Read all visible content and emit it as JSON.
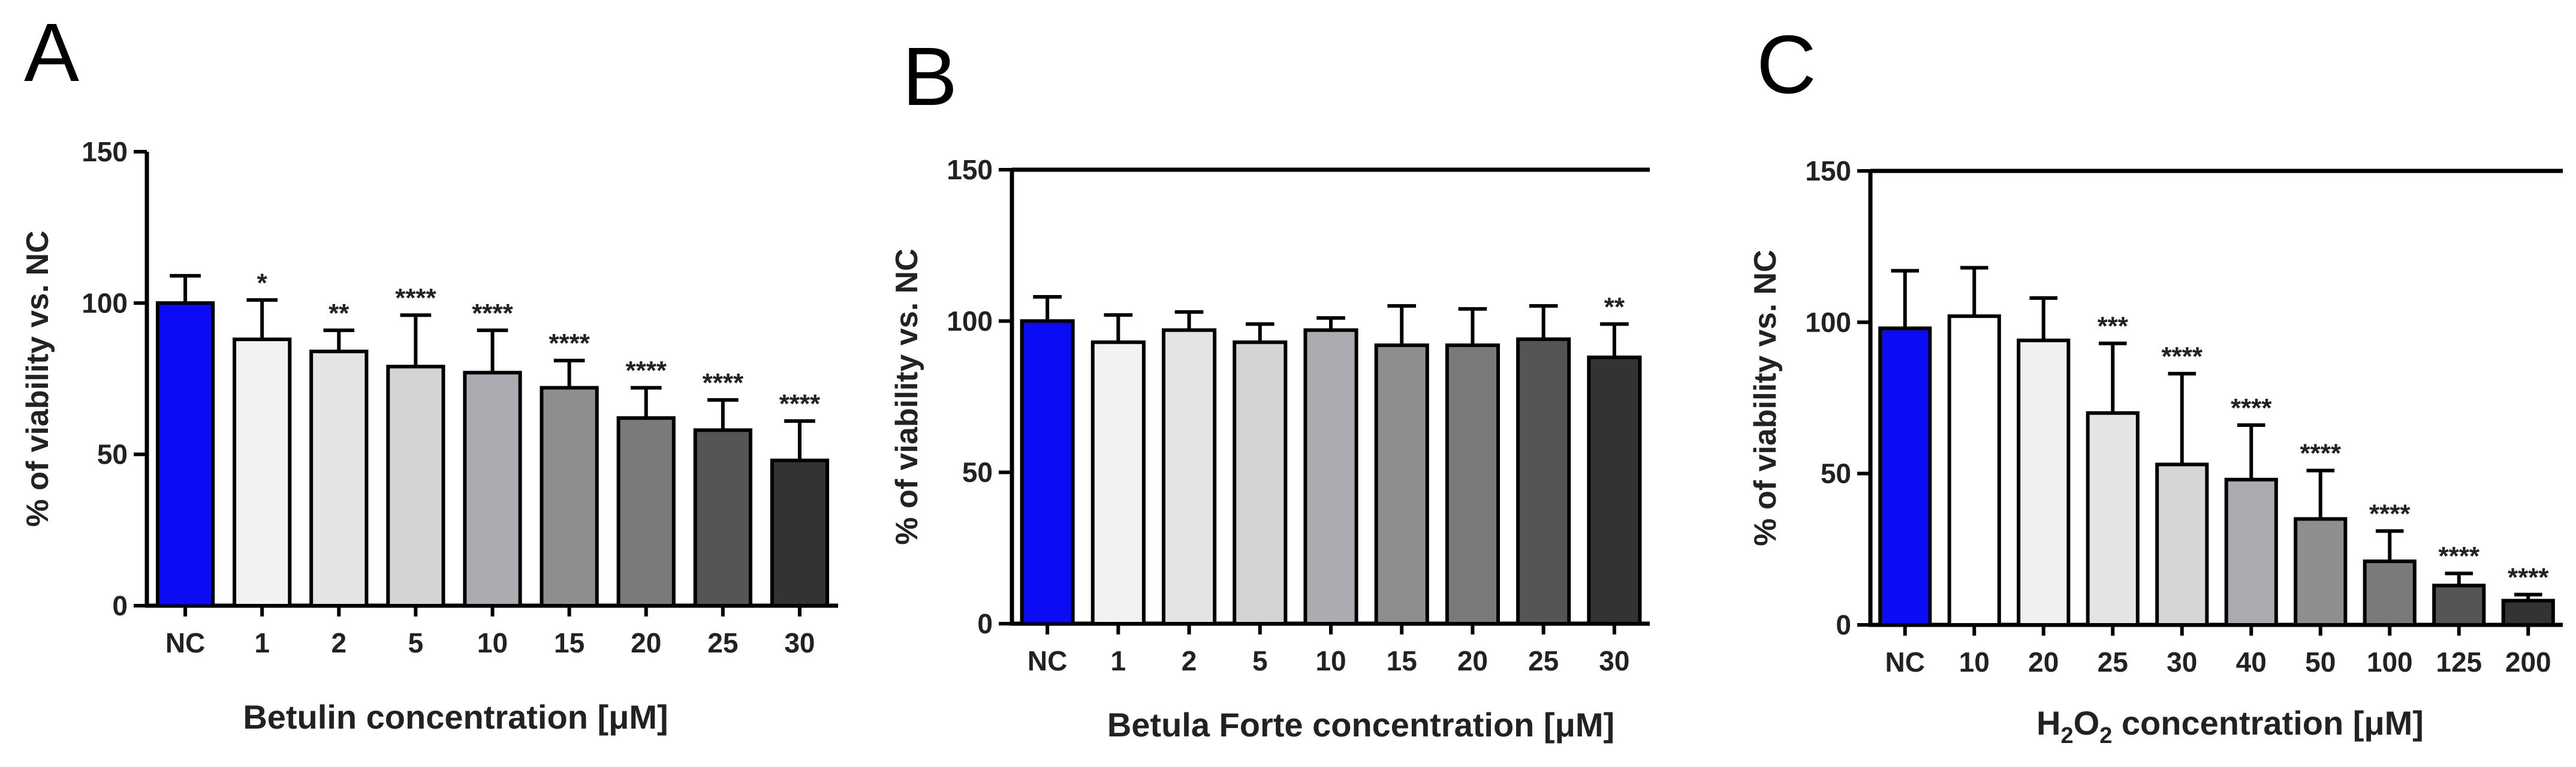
{
  "chart_data": [
    {
      "type": "bar",
      "panel": "A",
      "xlabel": "Betulin concentration [μM]",
      "xlabel_sub": null,
      "ylabel": "% of viability vs. NC",
      "ylim": [
        0,
        150
      ],
      "yticks": [
        0,
        50,
        100,
        150
      ],
      "categories": [
        "NC",
        "1",
        "2",
        "5",
        "10",
        "15",
        "20",
        "25",
        "30"
      ],
      "values": [
        100,
        88,
        84,
        79,
        77,
        72,
        62,
        58,
        48
      ],
      "errors": [
        9,
        13,
        7,
        17,
        14,
        9,
        10,
        10,
        13
      ],
      "significance": [
        "",
        "*",
        "**",
        "****",
        "****",
        "****",
        "****",
        "****",
        "****"
      ],
      "colors": [
        "#0b0bf5",
        "#f2f2f2",
        "#e4e4e4",
        "#d4d4d4",
        "#ababb2",
        "#8e8e8e",
        "#7a7a7a",
        "#555555",
        "#333333"
      ]
    },
    {
      "type": "bar",
      "panel": "B",
      "xlabel": "Betula Forte concentration [μM]",
      "xlabel_sub": null,
      "ylabel": "% of viability vs. NC",
      "ylim": [
        0,
        150
      ],
      "yticks": [
        0,
        50,
        100,
        150
      ],
      "categories": [
        "NC",
        "1",
        "2",
        "5",
        "10",
        "15",
        "20",
        "25",
        "30"
      ],
      "values": [
        100,
        93,
        97,
        93,
        97,
        92,
        92,
        94,
        88
      ],
      "errors": [
        8,
        9,
        6,
        6,
        4,
        13,
        12,
        11,
        11
      ],
      "significance": [
        "",
        "",
        "",
        "",
        "",
        "",
        "",
        "",
        "**"
      ],
      "colors": [
        "#0b0bf5",
        "#f2f2f2",
        "#e4e4e4",
        "#d4d4d4",
        "#ababb2",
        "#8e8e8e",
        "#7a7a7a",
        "#555555",
        "#333333"
      ]
    },
    {
      "type": "bar",
      "panel": "C",
      "xlabel": "H2O2 concentration [μM]",
      "xlabel_parts": [
        "H",
        "2",
        "O",
        "2",
        " concentration [μM]"
      ],
      "ylabel": "% of viability vs. NC",
      "ylim": [
        0,
        150
      ],
      "yticks": [
        0,
        50,
        100,
        150
      ],
      "categories": [
        "NC",
        "10",
        "20",
        "25",
        "30",
        "40",
        "50",
        "100",
        "125",
        "200"
      ],
      "values": [
        98,
        102,
        94,
        70,
        53,
        48,
        35,
        21,
        13,
        8
      ],
      "errors": [
        19,
        16,
        14,
        23,
        30,
        18,
        16,
        10,
        4,
        2
      ],
      "significance": [
        "",
        "",
        "",
        "***",
        "****",
        "****",
        "****",
        "****",
        "****",
        "****"
      ],
      "colors": [
        "#0b0bf5",
        "#ffffff",
        "#f0f0f0",
        "#e4e4e4",
        "#d6d6d6",
        "#ababb2",
        "#8e8e8e",
        "#7a7a7a",
        "#555555",
        "#333333"
      ]
    }
  ]
}
